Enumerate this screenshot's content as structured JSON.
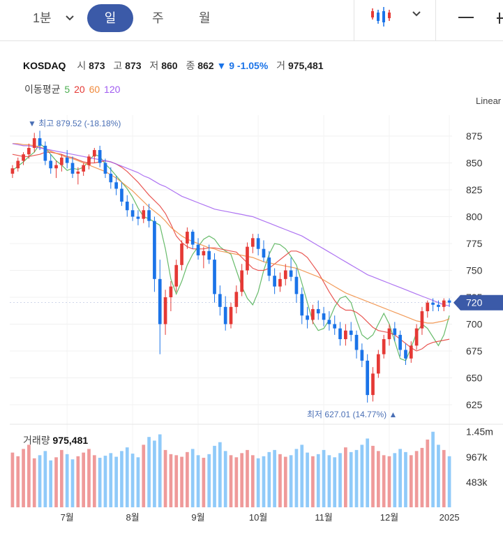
{
  "toolbar": {
    "interval_label": "1분",
    "tabs": [
      "일",
      "주",
      "월"
    ],
    "active_tab": "일",
    "chart_type_icon": "candlestick-icon",
    "dropdown_icon": "chevron-down-icon",
    "line_tool_icon": "minus-icon"
  },
  "quote": {
    "symbol": "KOSDAQ",
    "open_label": "시",
    "open": "873",
    "high_label": "고",
    "high": "873",
    "low_label": "저",
    "low": "860",
    "close_label": "종",
    "close": "862",
    "change": "▼ 9",
    "change_pct": "-1.05%",
    "volume_label": "거",
    "volume": "975,481"
  },
  "moving_average": {
    "label": "이동평균",
    "periods": [
      {
        "value": "5",
        "color": "#4caf50"
      },
      {
        "value": "20",
        "color": "#e53935"
      },
      {
        "value": "60",
        "color": "#f08a3c"
      },
      {
        "value": "120",
        "color": "#a05cf0"
      }
    ]
  },
  "scale_mode": "Linear",
  "annotations": {
    "high": "▼ 최고 879.52 (-18.18%)",
    "low": "최저 627.01 (14.77%) ▲",
    "current_price": "720"
  },
  "volume_panel": {
    "label": "거래량",
    "value": "975,481",
    "ticks": [
      "1.45m",
      "967k",
      "483k"
    ]
  },
  "colors": {
    "up": "#e53935",
    "down": "#1a73e8",
    "vol_up": "#ef9a9a",
    "vol_down": "#90caf9",
    "price_tag": "#3b5aa8"
  },
  "chart_data": {
    "type": "candlestick",
    "y_ticks": [
      875,
      850,
      825,
      800,
      775,
      750,
      725,
      700,
      675,
      650,
      625
    ],
    "ylim": [
      612,
      888
    ],
    "x_ticks": [
      "7월",
      "8월",
      "9월",
      "10월",
      "11월",
      "12월",
      "2025"
    ],
    "highest": 879.52,
    "lowest": 627.01,
    "last_price": 720,
    "grid": true,
    "series": [
      {
        "name": "5",
        "values": [
          843,
          847,
          851,
          856,
          860,
          868,
          864,
          858,
          852,
          848,
          843,
          845,
          844,
          846,
          852,
          858,
          856,
          849,
          844,
          838,
          832,
          826,
          818,
          808,
          800,
          798,
          795,
          792,
          770,
          742,
          728,
          740,
          755,
          765,
          772,
          779,
          782,
          779,
          772,
          768,
          765,
          750,
          735,
          724,
          718,
          730,
          750,
          765,
          775,
          774,
          770,
          763,
          755,
          738,
          720,
          702,
          694,
          696,
          704,
          716,
          724,
          726,
          720,
          704,
          690,
          686,
          690,
          700,
          710,
          700,
          684,
          668,
          666,
          678,
          692,
          700,
          696,
          688,
          680,
          690,
          708
        ]
      },
      {
        "name": "20",
        "values": [
          858,
          857,
          856,
          856,
          857,
          858,
          860,
          860,
          859,
          858,
          856,
          855,
          853,
          851,
          850,
          850,
          851,
          852,
          851,
          849,
          846,
          842,
          837,
          832,
          826,
          820,
          815,
          810,
          803,
          793,
          782,
          776,
          772,
          770,
          770,
          770,
          771,
          771,
          770,
          769,
          768,
          767,
          762,
          757,
          752,
          750,
          750,
          752,
          756,
          760,
          764,
          768,
          768,
          766,
          762,
          755,
          748,
          739,
          730,
          722,
          716,
          713,
          713,
          711,
          707,
          702,
          697,
          694,
          693,
          692,
          690,
          686,
          682,
          678,
          675,
          677,
          681,
          683,
          684,
          685,
          686
        ]
      },
      {
        "name": "60",
        "values": [
          868,
          868,
          867,
          867,
          866,
          865,
          863,
          861,
          859,
          857,
          855,
          854,
          852,
          850,
          848,
          846,
          844,
          842,
          839,
          836,
          832,
          828,
          824,
          819,
          814,
          809,
          805,
          801,
          796,
          790,
          786,
          782,
          779,
          777,
          775,
          773,
          771,
          770,
          768,
          767,
          766,
          765,
          764,
          763,
          762,
          760,
          758,
          757,
          756,
          755,
          754,
          753,
          752,
          750,
          748,
          746,
          744,
          741,
          738,
          735,
          732,
          729,
          727,
          725,
          723,
          721,
          719,
          717,
          715,
          713,
          711,
          709,
          707,
          705,
          703,
          702,
          701,
          701,
          702,
          703,
          705
        ]
      },
      {
        "name": "120",
        "values": [
          868,
          867,
          866,
          866,
          865,
          864,
          863,
          862,
          861,
          860,
          859,
          858,
          857,
          856,
          855,
          854,
          853,
          852,
          851,
          849,
          847,
          845,
          843,
          841,
          838,
          836,
          833,
          830,
          828,
          825,
          822,
          819,
          817,
          815,
          813,
          811,
          809,
          807,
          806,
          805,
          804,
          803,
          802,
          801,
          800,
          798,
          796,
          794,
          792,
          790,
          788,
          786,
          784,
          782,
          779,
          776,
          773,
          770,
          767,
          764,
          761,
          758,
          755,
          752,
          749,
          746,
          744,
          742,
          740,
          738,
          736,
          734,
          732,
          730,
          728,
          726,
          724,
          722,
          720,
          718,
          717
        ]
      }
    ],
    "candles": [
      [
        840,
        848,
        836,
        845
      ],
      [
        845,
        855,
        842,
        852
      ],
      [
        852,
        860,
        848,
        858
      ],
      [
        858,
        868,
        854,
        864
      ],
      [
        864,
        878,
        860,
        873
      ],
      [
        873,
        880,
        862,
        866
      ],
      [
        866,
        870,
        848,
        852
      ],
      [
        852,
        858,
        840,
        845
      ],
      [
        845,
        852,
        836,
        848
      ],
      [
        848,
        858,
        842,
        855
      ],
      [
        855,
        862,
        845,
        850
      ],
      [
        850,
        856,
        836,
        840
      ],
      [
        840,
        846,
        830,
        842
      ],
      [
        842,
        850,
        838,
        848
      ],
      [
        848,
        858,
        844,
        856
      ],
      [
        856,
        864,
        850,
        862
      ],
      [
        862,
        866,
        846,
        850
      ],
      [
        850,
        854,
        836,
        840
      ],
      [
        840,
        846,
        826,
        832
      ],
      [
        832,
        838,
        820,
        826
      ],
      [
        826,
        832,
        810,
        814
      ],
      [
        814,
        820,
        800,
        806
      ],
      [
        806,
        812,
        796,
        800
      ],
      [
        800,
        806,
        792,
        798
      ],
      [
        798,
        810,
        794,
        806
      ],
      [
        806,
        812,
        790,
        796
      ],
      [
        796,
        800,
        730,
        742
      ],
      [
        742,
        760,
        672,
        700
      ],
      [
        700,
        732,
        690,
        725
      ],
      [
        725,
        740,
        712,
        735
      ],
      [
        735,
        760,
        730,
        755
      ],
      [
        755,
        778,
        750,
        775
      ],
      [
        775,
        790,
        770,
        786
      ],
      [
        786,
        788,
        770,
        774
      ],
      [
        774,
        780,
        760,
        764
      ],
      [
        764,
        772,
        752,
        768
      ],
      [
        768,
        774,
        756,
        760
      ],
      [
        760,
        766,
        720,
        728
      ],
      [
        728,
        736,
        708,
        716
      ],
      [
        716,
        726,
        694,
        700
      ],
      [
        700,
        720,
        696,
        716
      ],
      [
        716,
        736,
        710,
        730
      ],
      [
        730,
        756,
        726,
        750
      ],
      [
        750,
        776,
        746,
        772
      ],
      [
        772,
        784,
        766,
        780
      ],
      [
        780,
        784,
        764,
        770
      ],
      [
        770,
        778,
        758,
        762
      ],
      [
        762,
        768,
        740,
        745
      ],
      [
        745,
        752,
        728,
        735
      ],
      [
        735,
        748,
        730,
        742
      ],
      [
        742,
        756,
        736,
        750
      ],
      [
        750,
        762,
        740,
        744
      ],
      [
        744,
        752,
        720,
        728
      ],
      [
        728,
        734,
        700,
        708
      ],
      [
        708,
        716,
        696,
        704
      ],
      [
        704,
        718,
        700,
        714
      ],
      [
        714,
        722,
        704,
        710
      ],
      [
        710,
        716,
        698,
        704
      ],
      [
        704,
        712,
        694,
        700
      ],
      [
        700,
        708,
        690,
        696
      ],
      [
        696,
        702,
        680,
        686
      ],
      [
        686,
        700,
        680,
        694
      ],
      [
        694,
        702,
        684,
        690
      ],
      [
        690,
        694,
        668,
        676
      ],
      [
        676,
        682,
        660,
        666
      ],
      [
        666,
        672,
        627,
        634
      ],
      [
        634,
        660,
        628,
        654
      ],
      [
        654,
        676,
        650,
        672
      ],
      [
        672,
        690,
        668,
        686
      ],
      [
        686,
        700,
        680,
        696
      ],
      [
        696,
        702,
        684,
        690
      ],
      [
        690,
        694,
        670,
        676
      ],
      [
        676,
        682,
        662,
        668
      ],
      [
        668,
        684,
        664,
        680
      ],
      [
        680,
        700,
        676,
        696
      ],
      [
        696,
        716,
        690,
        712
      ],
      [
        712,
        722,
        706,
        720
      ],
      [
        720,
        724,
        712,
        718
      ],
      [
        718,
        722,
        712,
        716
      ],
      [
        716,
        724,
        712,
        722
      ],
      [
        722,
        724,
        716,
        720
      ]
    ],
    "volume": [
      1.05,
      0.98,
      1.12,
      1.2,
      0.94,
      1.0,
      1.08,
      0.9,
      0.96,
      1.1,
      1.02,
      0.92,
      0.98,
      1.05,
      1.12,
      1.0,
      0.95,
      0.99,
      1.04,
      0.97,
      1.08,
      1.15,
      1.03,
      0.96,
      1.2,
      1.35,
      1.28,
      1.4,
      1.1,
      1.02,
      1.0,
      0.97,
      1.06,
      1.12,
      1.0,
      0.95,
      1.02,
      1.18,
      1.25,
      1.08,
      1.0,
      0.96,
      1.04,
      1.1,
      1.0,
      0.94,
      0.98,
      1.06,
      1.1,
      1.02,
      0.97,
      1.0,
      1.12,
      1.2,
      1.05,
      0.98,
      1.02,
      1.1,
      1.0,
      0.96,
      1.04,
      1.15,
      1.06,
      1.1,
      1.2,
      1.32,
      1.18,
      1.08,
      1.0,
      0.98,
      1.04,
      1.12,
      1.06,
      1.0,
      1.08,
      1.14,
      1.3,
      1.45,
      1.2,
      1.1,
      0.98
    ]
  }
}
